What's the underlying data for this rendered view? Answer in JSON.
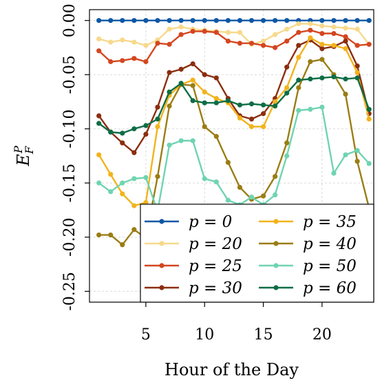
{
  "chart_data": {
    "type": "line",
    "title": "",
    "xlabel": "Hour of the Day",
    "ylabel": "E_F^P",
    "xlim": [
      0.2,
      24.4
    ],
    "ylim": [
      -0.26,
      0.01
    ],
    "xticks": [
      5,
      10,
      15,
      20
    ],
    "yticks": [
      0.0,
      -0.05,
      -0.1,
      -0.15,
      -0.2,
      -0.25
    ],
    "ytick_labels": [
      "0.00",
      "-0.05",
      "-0.10",
      "-0.15",
      "-0.20",
      "-0.25"
    ],
    "grid": true,
    "legend_position": "bottom-right",
    "x": [
      1,
      2,
      3,
      4,
      5,
      6,
      7,
      8,
      9,
      10,
      11,
      12,
      13,
      14,
      15,
      16,
      17,
      18,
      19,
      20,
      21,
      22,
      23,
      24
    ],
    "series": [
      {
        "name": "p = 0",
        "color": "#0d57a5",
        "values": [
          0,
          0,
          0,
          0,
          0,
          0,
          0,
          0,
          0,
          0,
          0,
          0,
          0,
          0,
          0,
          0,
          0,
          0,
          0,
          0,
          0,
          0,
          0,
          0
        ]
      },
      {
        "name": "p = 20",
        "color": "#f7d98b",
        "values": [
          -0.017,
          -0.02,
          -0.018,
          -0.02,
          -0.023,
          -0.018,
          -0.008,
          -0.006,
          -0.008,
          -0.009,
          -0.01,
          -0.011,
          -0.011,
          -0.022,
          -0.019,
          -0.013,
          -0.008,
          -0.003,
          -0.003,
          -0.005,
          -0.006,
          -0.007,
          -0.008,
          -0.022
        ]
      },
      {
        "name": "p = 25",
        "color": "#d4461f",
        "values": [
          -0.028,
          -0.038,
          -0.037,
          -0.035,
          -0.038,
          -0.021,
          -0.022,
          -0.013,
          -0.01,
          -0.01,
          -0.011,
          -0.019,
          -0.021,
          -0.021,
          -0.023,
          -0.025,
          -0.019,
          -0.011,
          -0.009,
          -0.012,
          -0.012,
          -0.015,
          -0.023,
          -0.022
        ]
      },
      {
        "name": "p = 30",
        "color": "#8b2e0f",
        "values": [
          -0.088,
          -0.103,
          -0.113,
          -0.122,
          -0.105,
          -0.08,
          -0.048,
          -0.045,
          -0.04,
          -0.05,
          -0.053,
          -0.072,
          -0.088,
          -0.091,
          -0.086,
          -0.072,
          -0.043,
          -0.023,
          -0.018,
          -0.026,
          -0.024,
          -0.019,
          -0.042,
          -0.086
        ]
      },
      {
        "name": "p = 35",
        "color": "#f2b31c",
        "values": [
          -0.124,
          -0.142,
          -0.16,
          -0.171,
          -0.168,
          -0.098,
          -0.069,
          -0.059,
          -0.055,
          -0.066,
          -0.072,
          -0.076,
          -0.09,
          -0.098,
          -0.098,
          -0.075,
          -0.062,
          -0.034,
          -0.016,
          -0.022,
          -0.023,
          -0.026,
          -0.048,
          -0.091
        ]
      },
      {
        "name": "p = 40",
        "color": "#9a7d14",
        "values": [
          -0.198,
          -0.198,
          -0.207,
          -0.193,
          -0.201,
          -0.144,
          -0.079,
          -0.059,
          -0.06,
          -0.098,
          -0.107,
          -0.131,
          -0.154,
          -0.165,
          -0.162,
          -0.144,
          -0.113,
          -0.062,
          -0.038,
          -0.036,
          -0.05,
          -0.068,
          -0.13,
          -0.173
        ]
      },
      {
        "name": "p = 50",
        "color": "#6fd4b0",
        "values": [
          -0.15,
          -0.158,
          -0.15,
          -0.146,
          -0.145,
          -0.176,
          -0.115,
          -0.111,
          -0.111,
          -0.146,
          -0.149,
          -0.166,
          -0.17,
          -0.163,
          -0.17,
          -0.161,
          -0.125,
          -0.083,
          -0.082,
          -0.08,
          -0.141,
          -0.124,
          -0.12,
          -0.132
        ]
      },
      {
        "name": "p = 60",
        "color": "#0d6d45",
        "values": [
          -0.095,
          -0.103,
          -0.104,
          -0.1,
          -0.097,
          -0.091,
          -0.066,
          -0.058,
          -0.074,
          -0.076,
          -0.076,
          -0.074,
          -0.078,
          -0.077,
          -0.078,
          -0.079,
          -0.067,
          -0.055,
          -0.054,
          -0.053,
          -0.052,
          -0.054,
          -0.053,
          -0.082
        ]
      }
    ]
  }
}
